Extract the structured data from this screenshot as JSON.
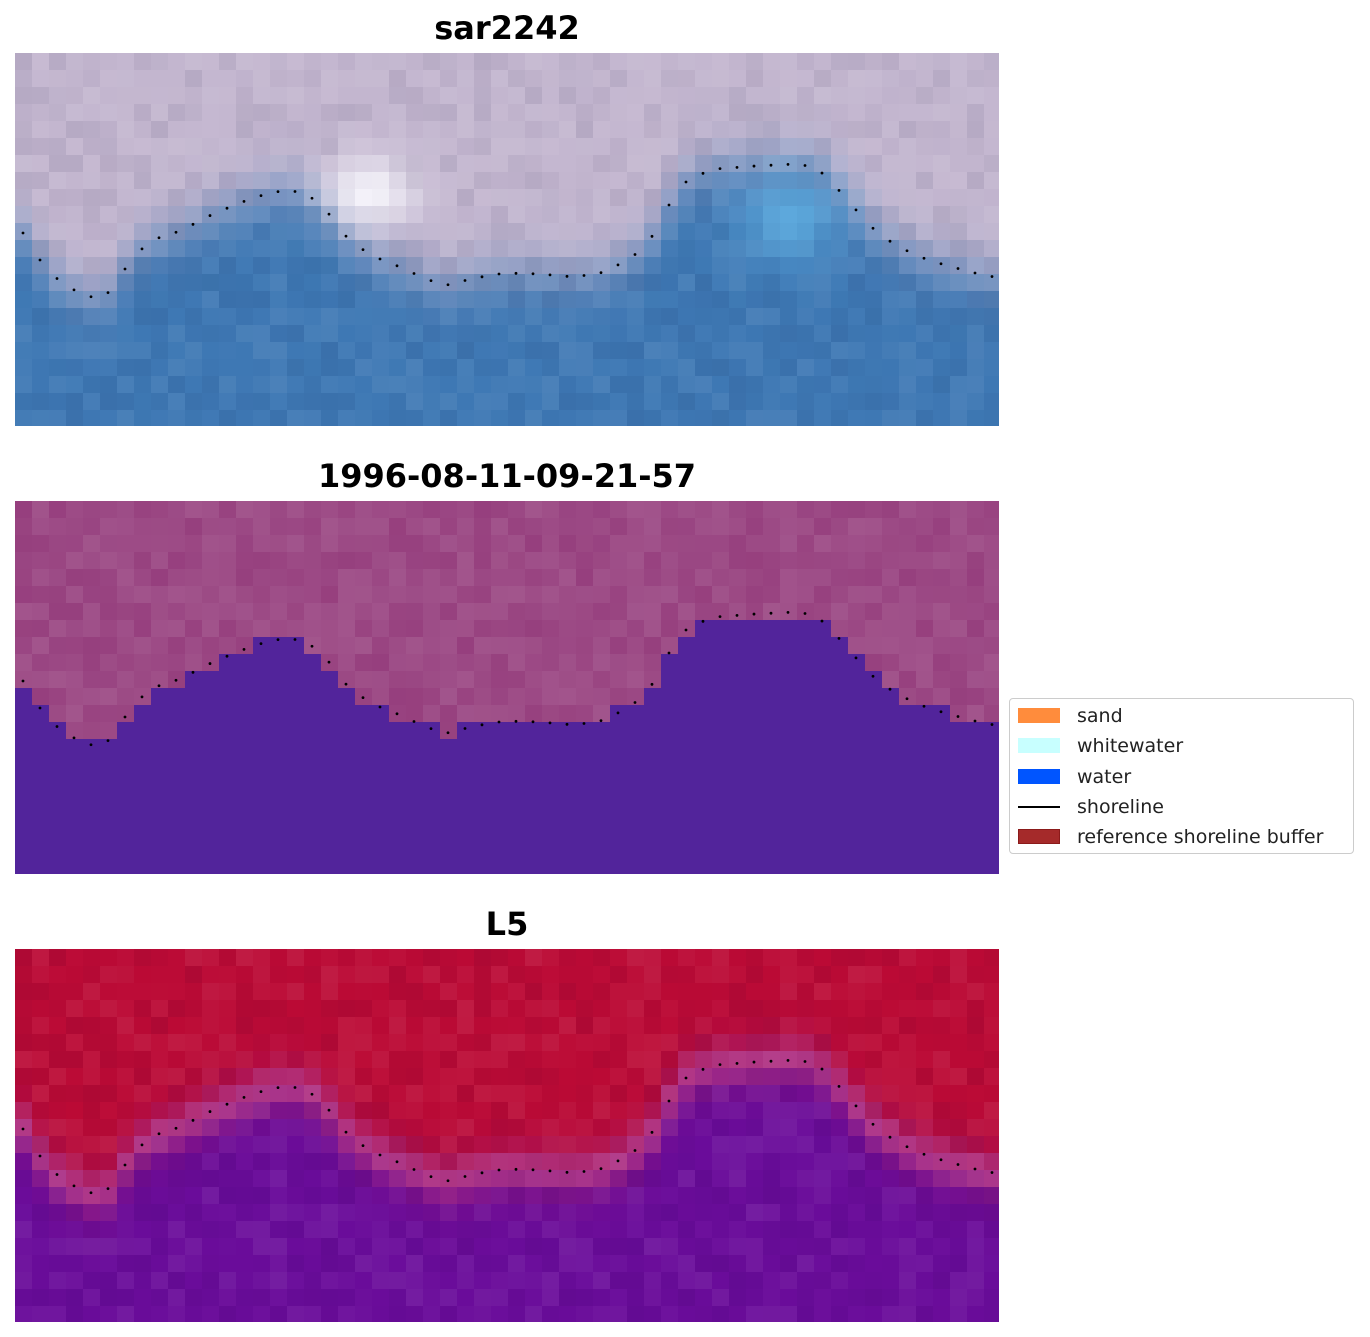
{
  "panels": [
    {
      "title": "sar2242",
      "style": "rgb"
    },
    {
      "title": "1996-08-11-09-21-57",
      "style": "classified"
    },
    {
      "title": "L5",
      "style": "index"
    }
  ],
  "legend": {
    "items": [
      {
        "label": "sand",
        "kind": "patch",
        "color": "#ff8c3c"
      },
      {
        "label": "whitewater",
        "kind": "patch",
        "color": "#c8ffff"
      },
      {
        "label": "water",
        "kind": "patch",
        "color": "#0055ff"
      },
      {
        "label": "shoreline",
        "kind": "line",
        "color": "#000000"
      },
      {
        "label": "reference shoreline buffer",
        "kind": "patch",
        "color": "#a52a2a",
        "edge": "#8b1a1a"
      }
    ]
  },
  "colors": {
    "land_rgb": "#c3b6cf",
    "water_rgb": "#3e78b4",
    "land_class": "#9c4a85",
    "water_class": "#52249b",
    "land_index": "#bb0a35",
    "water_index": "#6a0c9a",
    "shoreline": "#000000"
  }
}
